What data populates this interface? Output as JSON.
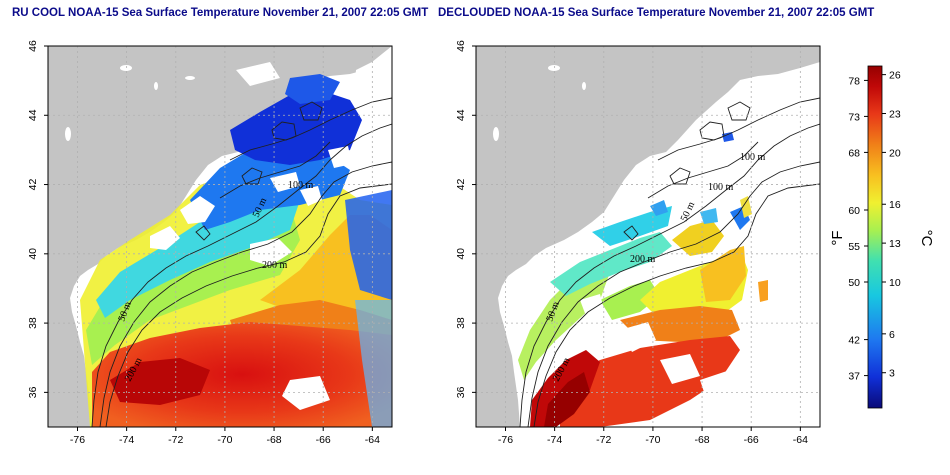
{
  "panels": [
    {
      "title": "RU COOL NOAA-15 Sea Surface Temperature November 21, 2007 22:05 GMT",
      "kind": "raw"
    },
    {
      "title": "DECLOUDED NOAA-15 Sea Surface Temperature November 21, 2007 22:05 GMT",
      "kind": "declouded"
    }
  ],
  "axes": {
    "lon_ticks": [
      "-76",
      "-74",
      "-72",
      "-70",
      "-68",
      "-66",
      "-64"
    ],
    "lat_ticks": [
      "36",
      "38",
      "40",
      "42",
      "44",
      "46"
    ],
    "lon_range": [
      -77.2,
      -63.2
    ],
    "lat_range": [
      35,
      46
    ]
  },
  "contours": {
    "panel1": [
      "100 m",
      "50 m",
      "200 m",
      "50 m",
      "200 m"
    ],
    "panel2": [
      "100 m",
      "100 m",
      "50 m",
      "200 m",
      "50 m",
      "200 m"
    ]
  },
  "colorbar": {
    "unit_f": "°F",
    "unit_c": "°C",
    "f_ticks": [
      "78",
      "73",
      "68",
      "60",
      "55",
      "50",
      "42",
      "37"
    ],
    "c_ticks": [
      "26",
      "23",
      "20",
      "16",
      "13",
      "10",
      "6",
      "3"
    ],
    "colors": [
      "#0a0a78",
      "#1030d8",
      "#1e78f0",
      "#18c8e0",
      "#40e0b0",
      "#a8f050",
      "#f0f030",
      "#f8c020",
      "#f08018",
      "#e83818",
      "#c00808",
      "#960000"
    ]
  },
  "colors": {
    "land": "#c4c4c4",
    "title": "#0b0b8a"
  }
}
